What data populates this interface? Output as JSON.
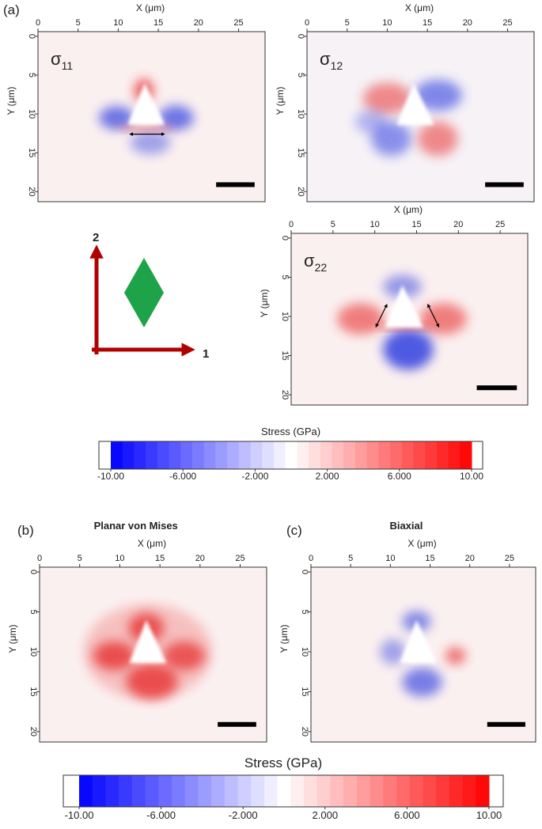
{
  "figure_labels": [
    "(a)",
    "(b)",
    "(c)"
  ],
  "panels": [
    {
      "symbol": "σ",
      "subscript": "11",
      "x_label": "X (μm)",
      "y_label": "Y (μm)",
      "xlim": [
        0,
        28.3
      ],
      "ylim": [
        -0.6,
        21.3
      ],
      "xticks": [
        0,
        5,
        10,
        15,
        20,
        25
      ],
      "yticks": [
        0,
        5,
        10,
        15,
        20
      ]
    },
    {
      "symbol": "σ",
      "subscript": "12",
      "x_label": "X (μm)",
      "y_label": "Y (μm)",
      "xlim": [
        0,
        28.3
      ],
      "ylim": [
        -0.6,
        21.3
      ],
      "xticks": [
        0,
        5,
        10,
        15,
        20,
        25
      ],
      "yticks": [
        0,
        5,
        10,
        15,
        20
      ]
    },
    {
      "symbol": "σ",
      "subscript": "22",
      "x_label": "X (μm)",
      "y_label": "Y (μm)",
      "xlim": [
        0,
        28.3
      ],
      "ylim": [
        -0.6,
        21.3
      ],
      "xticks": [
        0,
        5,
        10,
        15,
        20,
        25
      ],
      "yticks": [
        0,
        5,
        10,
        15,
        20
      ]
    },
    {
      "title": "Planar von Mises",
      "x_label": "X (μm)",
      "y_label": "Y (μm)",
      "xlim": [
        0,
        28.3
      ],
      "ylim": [
        -0.6,
        21.3
      ],
      "xticks": [
        0,
        5,
        10,
        15,
        20,
        25
      ],
      "yticks": [
        0,
        5,
        10,
        15,
        20
      ]
    },
    {
      "title": "Biaxial",
      "x_label": "X (μm)",
      "y_label": "Y (μm)",
      "xlim": [
        0,
        28.3
      ],
      "ylim": [
        -0.6,
        21.3
      ],
      "xticks": [
        0,
        5,
        10,
        15,
        20,
        25
      ],
      "yticks": [
        0,
        5,
        10,
        15,
        20
      ]
    }
  ],
  "axes_diagram": {
    "labels": [
      "1",
      "2"
    ]
  },
  "colorbars": [
    {
      "title": "Stress (GPa)",
      "clim": [
        -10,
        10
      ],
      "ticks": [
        {
          "value": -10,
          "label": "-10.00"
        },
        {
          "value": -6,
          "label": "-6.000"
        },
        {
          "value": -2,
          "label": "-2.000"
        },
        {
          "value": 2,
          "label": "2.000"
        },
        {
          "value": 6,
          "label": "6.000"
        },
        {
          "value": 10,
          "label": "10.00"
        }
      ]
    },
    {
      "title": "Stress (GPa)",
      "clim": [
        -10,
        10
      ],
      "ticks": [
        {
          "value": -10,
          "label": "-10.00"
        },
        {
          "value": -6,
          "label": "-6.000"
        },
        {
          "value": -2,
          "label": "-2.000"
        },
        {
          "value": 2,
          "label": "2.000"
        },
        {
          "value": 6,
          "label": "6.000"
        },
        {
          "value": 10,
          "label": "10.00"
        }
      ]
    }
  ]
}
